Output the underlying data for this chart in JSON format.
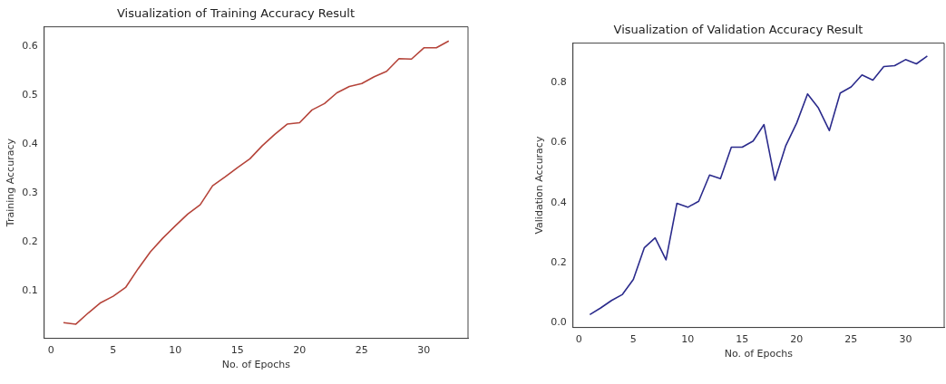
{
  "chart_data": [
    {
      "type": "line",
      "title": "Visualization of Training Accuracy Result",
      "xlabel": "No. of Epochs",
      "ylabel": "Training Accuracy",
      "grid": false,
      "legend": false,
      "x": [
        1,
        2,
        3,
        4,
        5,
        6,
        7,
        8,
        9,
        10,
        11,
        12,
        13,
        14,
        15,
        16,
        17,
        18,
        19,
        20,
        21,
        22,
        23,
        24,
        25,
        26,
        27,
        28,
        29,
        30,
        31,
        32
      ],
      "series": [
        {
          "color": "#b5443a",
          "values": [
            0.035,
            0.032,
            0.055,
            0.076,
            0.089,
            0.107,
            0.145,
            0.18,
            0.208,
            0.233,
            0.257,
            0.276,
            0.315,
            0.333,
            0.352,
            0.37,
            0.397,
            0.42,
            0.441,
            0.444,
            0.47,
            0.483,
            0.505,
            0.518,
            0.524,
            0.538,
            0.549,
            0.575,
            0.574,
            0.597,
            0.597,
            0.611
          ]
        }
      ],
      "xlim": [
        -0.55,
        33.55
      ],
      "xticks": [
        0,
        5,
        10,
        15,
        20,
        25,
        30
      ],
      "ylim": [
        0.003,
        0.64
      ],
      "yticks": [
        0.1,
        0.2,
        0.3,
        0.4,
        0.5,
        0.6
      ]
    },
    {
      "type": "line",
      "title": "Visualization of Validation Accuracy Result",
      "xlabel": "No. of Epochs",
      "ylabel": "Validation Accuracy",
      "grid": false,
      "legend": false,
      "x": [
        1,
        2,
        3,
        4,
        5,
        6,
        7,
        8,
        9,
        10,
        11,
        12,
        13,
        14,
        15,
        16,
        17,
        18,
        19,
        20,
        21,
        22,
        23,
        24,
        25,
        26,
        27,
        28,
        29,
        30,
        31,
        32
      ],
      "series": [
        {
          "color": "#2b2b8c",
          "values": [
            0.028,
            0.05,
            0.075,
            0.095,
            0.145,
            0.25,
            0.283,
            0.21,
            0.398,
            0.385,
            0.405,
            0.492,
            0.48,
            0.585,
            0.585,
            0.605,
            0.66,
            0.475,
            0.59,
            0.665,
            0.762,
            0.715,
            0.64,
            0.765,
            0.785,
            0.825,
            0.808,
            0.853,
            0.856,
            0.876,
            0.862,
            0.888
          ]
        }
      ],
      "xlim": [
        -0.55,
        33.55
      ],
      "xticks": [
        0,
        5,
        10,
        15,
        20,
        25,
        30
      ],
      "ylim": [
        -0.015,
        0.931
      ],
      "yticks": [
        {
          "value": 0,
          "label": "0.0"
        },
        0.2,
        0.4,
        0.6,
        0.8
      ]
    }
  ]
}
